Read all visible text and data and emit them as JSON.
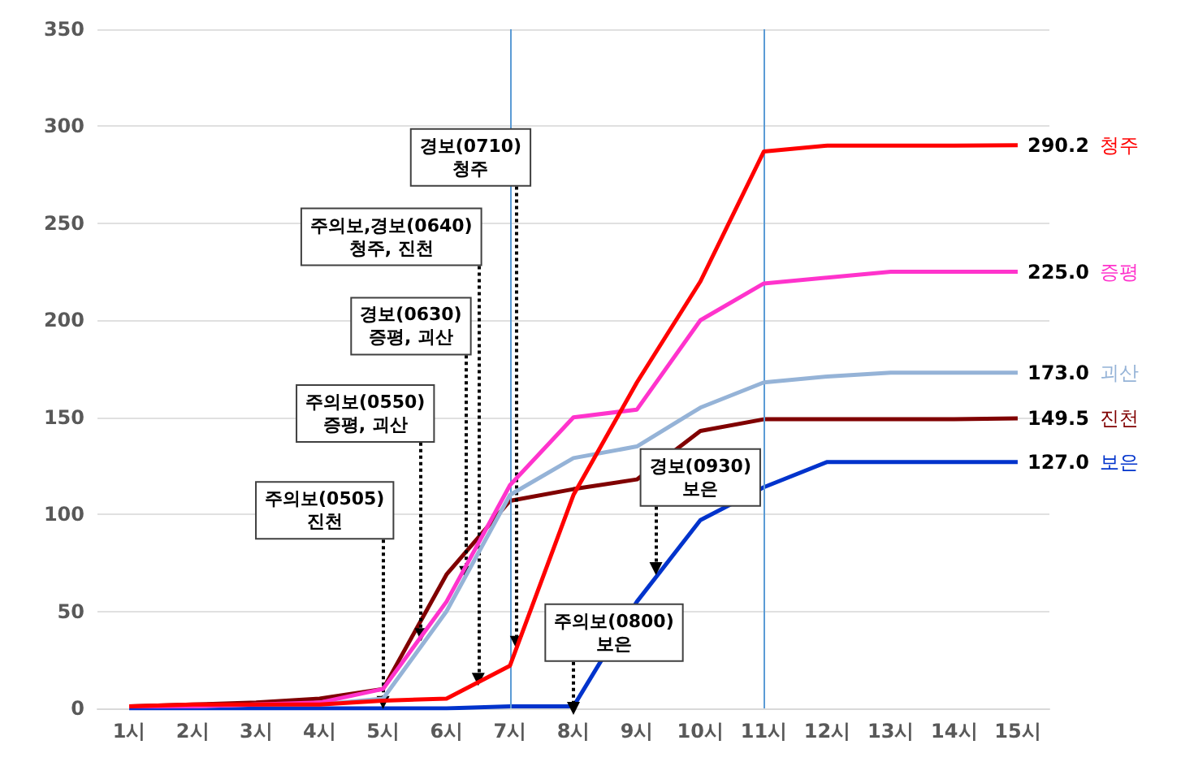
{
  "chart_data": {
    "type": "line",
    "x": [
      1,
      2,
      3,
      4,
      5,
      6,
      7,
      8,
      9,
      10,
      11,
      12,
      13,
      14,
      15
    ],
    "xlim": [
      0.5,
      15.5
    ],
    "xticks": [
      {
        "value": 1,
        "label": "1시"
      },
      {
        "value": 2,
        "label": "2시"
      },
      {
        "value": 3,
        "label": "3시"
      },
      {
        "value": 4,
        "label": "4시"
      },
      {
        "value": 5,
        "label": "5시"
      },
      {
        "value": 6,
        "label": "6시"
      },
      {
        "value": 7,
        "label": "7시"
      },
      {
        "value": 8,
        "label": "8시"
      },
      {
        "value": 9,
        "label": "9시"
      },
      {
        "value": 10,
        "label": "10시"
      },
      {
        "value": 11,
        "label": "11시"
      },
      {
        "value": 12,
        "label": "12시"
      },
      {
        "value": 13,
        "label": "13시"
      },
      {
        "value": 14,
        "label": "14시"
      },
      {
        "value": 15,
        "label": "15시"
      }
    ],
    "ylim": [
      0,
      350
    ],
    "yticks": [
      0,
      50,
      100,
      150,
      200,
      250,
      300,
      350
    ],
    "series": [
      {
        "name": "청주",
        "color": "#ff0000",
        "values": [
          1,
          2,
          2,
          2,
          4,
          5,
          22,
          110,
          168,
          220,
          287,
          290,
          290,
          290,
          290.2
        ],
        "value_labels": [
          null,
          null,
          null,
          null,
          null,
          null,
          null,
          null,
          null,
          null,
          null,
          null,
          null,
          null,
          "290.2"
        ]
      },
      {
        "name": "증평",
        "color": "#ff33cc",
        "values": [
          1,
          1,
          2,
          3,
          10,
          55,
          115,
          150,
          154,
          200,
          219,
          222,
          225,
          225,
          225
        ],
        "value_labels": [
          null,
          null,
          null,
          null,
          null,
          null,
          null,
          null,
          null,
          null,
          null,
          null,
          null,
          null,
          "225.0"
        ]
      },
      {
        "name": "괴산",
        "color": "#95b3d7",
        "values": [
          1,
          1,
          2,
          2,
          5,
          50,
          110,
          129,
          135,
          155,
          168,
          171,
          173,
          173,
          173
        ],
        "value_labels": [
          null,
          null,
          null,
          null,
          null,
          null,
          null,
          null,
          null,
          null,
          null,
          null,
          null,
          null,
          "173.0"
        ]
      },
      {
        "name": "진천",
        "color": "#800000",
        "values": [
          1,
          2,
          3,
          5,
          10,
          69,
          107,
          113,
          118,
          143,
          149,
          149,
          149,
          149,
          149.5
        ],
        "value_labels": [
          null,
          null,
          null,
          null,
          null,
          null,
          null,
          null,
          null,
          null,
          null,
          null,
          null,
          null,
          "149.5"
        ]
      },
      {
        "name": "보은",
        "color": "#0033cc",
        "values": [
          0,
          0,
          0,
          0,
          0,
          0,
          1,
          1,
          55,
          97,
          114,
          127,
          127,
          127,
          127
        ],
        "value_labels": [
          null,
          null,
          null,
          null,
          null,
          null,
          null,
          null,
          null,
          null,
          null,
          null,
          null,
          null,
          "127.0"
        ]
      }
    ],
    "ref_lines": [
      {
        "axis": "x",
        "value": 7,
        "color": "#5b9bd5"
      },
      {
        "axis": "x",
        "value": 11,
        "color": "#5b9bd5"
      }
    ],
    "annotations": [
      {
        "text": "주의보(0505)\n진천",
        "x": 5.0,
        "y": 3
      },
      {
        "text": "주의보(0550)\n증평, 괴산",
        "x": 5.6,
        "y": 38
      },
      {
        "text": "경보(0630)\n증평, 괴산",
        "x": 6.3,
        "y": 70
      },
      {
        "text": "주의보,경보(0640)\n청주, 진천",
        "x": 6.5,
        "y": 15
      },
      {
        "text": "경보(0710)\n청주",
        "x": 7.1,
        "y": 34
      },
      {
        "text": "주의보(0800)\n보은",
        "x": 8.0,
        "y": 0
      },
      {
        "text": "경보(0930)\n보은",
        "x": 9.3,
        "y": 72
      }
    ],
    "grid": "y",
    "legend": false,
    "marker": "none",
    "line_style": "solid"
  }
}
